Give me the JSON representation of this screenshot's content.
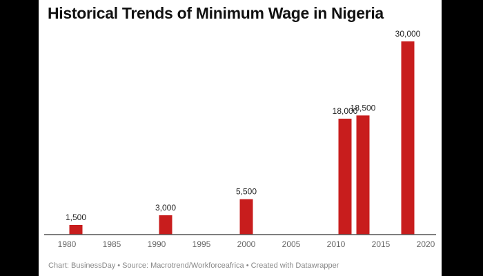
{
  "chart_data": {
    "type": "bar",
    "title": "Historical Trends of Minimum Wage in Nigeria",
    "x": [
      1981,
      1991,
      2000,
      2011,
      2013,
      2018
    ],
    "values": [
      1500,
      3000,
      5500,
      18000,
      18500,
      30000
    ],
    "data_labels": [
      "1,500",
      "3,000",
      "5,500",
      "18,000",
      "18,500",
      "30,000"
    ],
    "xticks": [
      "1980",
      "1985",
      "1990",
      "1995",
      "2000",
      "2005",
      "2010",
      "2015",
      "2020"
    ],
    "xlim": [
      1980,
      2020
    ],
    "ylim": [
      0,
      30000
    ],
    "xlabel": "",
    "ylabel": "",
    "grid": false,
    "bar_color": "#c81d1d",
    "footer": "Chart: BusinessDay • Source: Macrotrend/Workforceafrica • Created with Datawrapper"
  }
}
